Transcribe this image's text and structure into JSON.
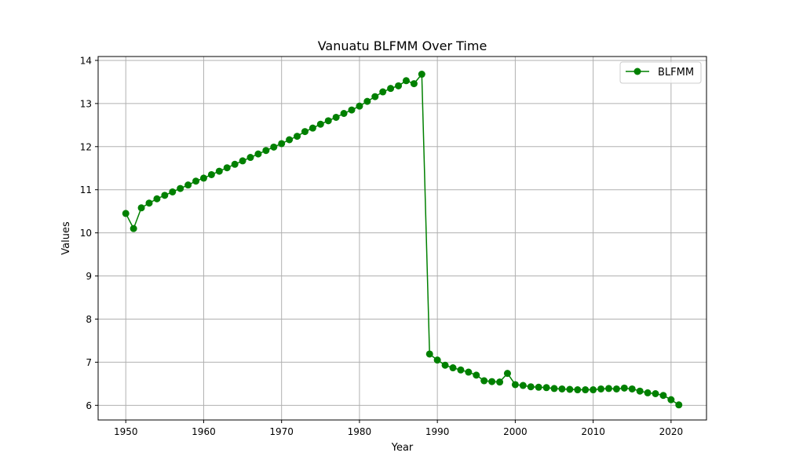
{
  "chart_data": {
    "type": "line",
    "title": "Vanuatu BLFMM Over Time",
    "xlabel": "Year",
    "ylabel": "Values",
    "xlim": [
      1946.45,
      2024.55
    ],
    "ylim": [
      5.66,
      14.09
    ],
    "x_ticks": [
      1950,
      1960,
      1970,
      1980,
      1990,
      2000,
      2010,
      2020
    ],
    "y_ticks": [
      6,
      7,
      8,
      9,
      10,
      11,
      12,
      13,
      14
    ],
    "grid": true,
    "legend_position": "top-right",
    "series": [
      {
        "name": "BLFMM",
        "color": "#008000",
        "marker": "circle",
        "x": [
          1950,
          1951,
          1952,
          1953,
          1954,
          1955,
          1956,
          1957,
          1958,
          1959,
          1960,
          1961,
          1962,
          1963,
          1964,
          1965,
          1966,
          1967,
          1968,
          1969,
          1970,
          1971,
          1972,
          1973,
          1974,
          1975,
          1976,
          1977,
          1978,
          1979,
          1980,
          1981,
          1982,
          1983,
          1984,
          1985,
          1986,
          1987,
          1988,
          1989,
          1990,
          1991,
          1992,
          1993,
          1994,
          1995,
          1996,
          1997,
          1998,
          1999,
          2000,
          2001,
          2002,
          2003,
          2004,
          2005,
          2006,
          2007,
          2008,
          2009,
          2010,
          2011,
          2012,
          2013,
          2014,
          2015,
          2016,
          2017,
          2018,
          2019,
          2020,
          2021
        ],
        "values": [
          10.45,
          10.1,
          10.58,
          10.69,
          10.79,
          10.87,
          10.95,
          11.03,
          11.11,
          11.2,
          11.27,
          11.35,
          11.43,
          11.51,
          11.59,
          11.67,
          11.75,
          11.83,
          11.91,
          11.99,
          12.07,
          12.16,
          12.24,
          12.35,
          12.43,
          12.52,
          12.6,
          12.68,
          12.77,
          12.85,
          12.94,
          13.05,
          13.16,
          13.27,
          13.35,
          13.41,
          13.53,
          13.46,
          13.68,
          7.19,
          7.05,
          6.93,
          6.87,
          6.82,
          6.77,
          6.7,
          6.57,
          6.55,
          6.54,
          6.74,
          6.48,
          6.46,
          6.43,
          6.42,
          6.41,
          6.39,
          6.38,
          6.37,
          6.36,
          6.36,
          6.36,
          6.38,
          6.39,
          6.38,
          6.4,
          6.38,
          6.33,
          6.29,
          6.27,
          6.23,
          6.13,
          6.01
        ]
      }
    ]
  }
}
